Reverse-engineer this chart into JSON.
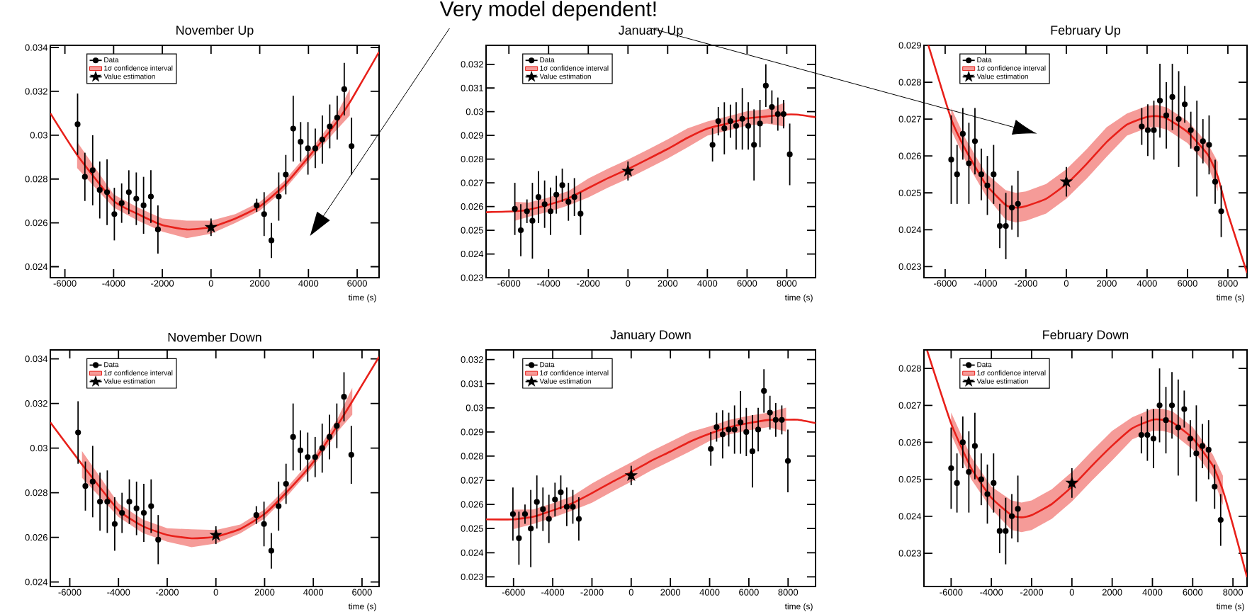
{
  "chart_data": [
    {
      "type": "scatter",
      "title": "November Up",
      "xlabel": "time (s)",
      "xlim": [
        -6600,
        6900
      ],
      "ylim": [
        0.0235,
        0.0341
      ],
      "xticks": [
        -6000,
        -4000,
        -2000,
        0,
        2000,
        4000,
        6000
      ],
      "yticks": [
        0.024,
        0.026,
        0.028,
        0.03,
        0.032,
        0.034
      ],
      "legend": "top left",
      "series": [
        {
          "name": "Data",
          "type": "scatter",
          "marker": "circle",
          "color": "#000000",
          "x": [
            -5480,
            -5180,
            -4860,
            -4570,
            -4270,
            -3970,
            -3670,
            -3375,
            -3070,
            -2770,
            -2470,
            -2180,
            1875,
            2180,
            2480,
            2780,
            3070,
            3375,
            3680,
            3980,
            4280,
            4570,
            4875,
            5180,
            5470,
            5770
          ],
          "values": [
            0.0305,
            0.0281,
            0.0284,
            0.0275,
            0.0274,
            0.0264,
            0.0269,
            0.0274,
            0.0271,
            0.0268,
            0.0272,
            0.0257,
            0.0268,
            0.0264,
            0.0252,
            0.0272,
            0.0282,
            0.0303,
            0.0297,
            0.0294,
            0.0294,
            0.0298,
            0.0304,
            0.0308,
            0.0321,
            0.0295
          ],
          "errors": [
            0.0014,
            0.0011,
            0.0016,
            0.0013,
            0.0015,
            0.0012,
            0.0009,
            0.001,
            0.0012,
            0.0013,
            0.0012,
            0.0011,
            0.0003,
            0.001,
            0.0008,
            0.0011,
            0.0009,
            0.0015,
            0.0009,
            0.0012,
            0.0009,
            0.0011,
            0.001,
            0.001,
            0.0012,
            0.0013
          ]
        },
        {
          "name": "1σ confidence interval",
          "type": "line",
          "color": "#e8201a",
          "x": [
            -6600,
            -5500,
            -4000,
            -3000,
            -2000,
            -1000,
            0,
            1000,
            2000,
            3000,
            4000,
            5000,
            5700,
            6900
          ],
          "values": [
            0.031,
            0.0291,
            0.027,
            0.0264,
            0.0259,
            0.0257,
            0.0258,
            0.0262,
            0.02675,
            0.0277,
            0.029,
            0.03035,
            0.0315,
            0.0338
          ],
          "lower": [
            null,
            0.0285,
            0.0267,
            0.0261,
            0.0256,
            0.0253,
            0.0255,
            0.026,
            0.02655,
            0.0275,
            0.0288,
            0.03005,
            0.0309,
            null
          ],
          "upper": [
            null,
            0.0297,
            0.0273,
            0.0267,
            0.0262,
            0.0261,
            0.0261,
            0.0264,
            0.02695,
            0.0279,
            0.0292,
            0.03065,
            0.0321,
            null
          ]
        },
        {
          "name": "Value estimation",
          "type": "scatter",
          "marker": "star",
          "color": "#000000",
          "x": [
            0
          ],
          "values": [
            0.0258
          ],
          "errors": [
            0.0004
          ]
        }
      ]
    },
    {
      "type": "scatter",
      "title": "January Up",
      "xlabel": "time (s)",
      "xlim": [
        -7150,
        9450
      ],
      "ylim": [
        0.023,
        0.0328
      ],
      "xticks": [
        -6000,
        -4000,
        -2000,
        0,
        2000,
        4000,
        6000,
        8000
      ],
      "yticks": [
        0.023,
        0.024,
        0.025,
        0.026,
        0.027,
        0.028,
        0.029,
        0.03,
        0.031,
        0.032
      ],
      "legend": "top left",
      "annotations": [
        "Very model dependent!"
      ],
      "series": [
        {
          "name": "Data",
          "type": "scatter",
          "marker": "circle",
          "color": "#000000",
          "x": [
            -5700,
            -5400,
            -5090,
            -4815,
            -4510,
            -4200,
            -3900,
            -3610,
            -3310,
            -3000,
            -2700,
            -2390,
            4260,
            4550,
            4855,
            5160,
            5450,
            5760,
            6060,
            6350,
            6650,
            6945,
            7250,
            7550,
            7840,
            8150
          ],
          "values": [
            0.0259,
            0.025,
            0.0258,
            0.0254,
            0.0264,
            0.0261,
            0.0258,
            0.0265,
            0.0269,
            0.0262,
            0.0264,
            0.0257,
            0.0286,
            0.0296,
            0.0293,
            0.0296,
            0.0294,
            0.0297,
            0.0294,
            0.0286,
            0.0295,
            0.0311,
            0.0302,
            0.0299,
            0.0299,
            0.0282
          ],
          "errors": [
            0.0011,
            0.0011,
            0.0005,
            0.0016,
            0.0011,
            0.001,
            0.001,
            0.0008,
            0.0007,
            0.0008,
            0.0008,
            0.0009,
            0.0007,
            0.0006,
            0.0011,
            0.0007,
            0.001,
            0.0013,
            0.001,
            0.0015,
            0.001,
            0.0009,
            0.0007,
            0.0007,
            0.0006,
            0.0013
          ]
        },
        {
          "name": "1σ confidence interval",
          "type": "line",
          "color": "#e8201a",
          "x": [
            -7150,
            -5700,
            -5000,
            -4000,
            -3000,
            -2000,
            -1000,
            0,
            1000,
            2000,
            3000,
            4000,
            5000,
            6000,
            7000,
            7900,
            8500,
            9450
          ],
          "values": [
            0.02576,
            0.0258,
            0.02587,
            0.02608,
            0.02635,
            0.02678,
            0.0272,
            0.02758,
            0.028,
            0.02843,
            0.0289,
            0.02929,
            0.0295,
            0.02972,
            0.0298,
            0.02988,
            0.02988,
            0.02977
          ],
          "lower": [
            null,
            0.0254,
            0.02557,
            0.02578,
            0.02605,
            0.02638,
            0.0268,
            0.02718,
            0.0276,
            0.02803,
            0.0285,
            0.02899,
            0.0292,
            0.02942,
            0.0295,
            0.02938,
            null,
            null
          ],
          "upper": [
            null,
            0.0262,
            0.02617,
            0.02638,
            0.02665,
            0.02718,
            0.0276,
            0.02798,
            0.0284,
            0.02883,
            0.0293,
            0.02959,
            0.0298,
            0.03002,
            0.0301,
            0.03038,
            null,
            null
          ]
        },
        {
          "name": "Value estimation",
          "type": "scatter",
          "marker": "star",
          "color": "#000000",
          "x": [
            0
          ],
          "values": [
            0.0275
          ],
          "errors": [
            0.0004
          ]
        }
      ]
    },
    {
      "type": "scatter",
      "title": "February Up",
      "xlabel": "time (s)",
      "xlim": [
        -7050,
        8950
      ],
      "ylim": [
        0.0227,
        0.029
      ],
      "xticks": [
        -6000,
        -4000,
        -2000,
        0,
        2000,
        4000,
        6000,
        8000
      ],
      "yticks": [
        0.023,
        0.024,
        0.025,
        0.026,
        0.027,
        0.028,
        0.029
      ],
      "legend": "top left",
      "series": [
        {
          "name": "Data",
          "type": "scatter",
          "marker": "circle",
          "color": "#000000",
          "x": [
            -5700,
            -5410,
            -5125,
            -4825,
            -4525,
            -4210,
            -3910,
            -3600,
            -3295,
            -2995,
            -2695,
            -2395,
            3735,
            4035,
            4335,
            4635,
            4950,
            5250,
            5565,
            5865,
            6165,
            6465,
            6765,
            7070,
            7370,
            7670
          ],
          "values": [
            0.0259,
            0.0255,
            0.0266,
            0.0258,
            0.0264,
            0.0255,
            0.0252,
            0.0255,
            0.0241,
            0.0241,
            0.0246,
            0.0247,
            0.0268,
            0.0267,
            0.0267,
            0.0275,
            0.0271,
            0.0276,
            0.027,
            0.0274,
            0.0267,
            0.0262,
            0.0264,
            0.0263,
            0.0253,
            0.0245
          ],
          "errors": [
            0.0012,
            0.0008,
            0.0007,
            0.0011,
            0.0009,
            0.0007,
            0.0008,
            0.0008,
            0.0006,
            0.0009,
            0.0006,
            0.0009,
            0.0005,
            0.0007,
            0.0008,
            0.001,
            0.0009,
            0.0009,
            0.0013,
            0.0005,
            0.0005,
            0.0013,
            0.0006,
            0.0008,
            0.0006,
            0.0007
          ]
        },
        {
          "name": "1σ confidence interval",
          "type": "line",
          "color": "#e8201a",
          "x": [
            -6830,
            -5700,
            -5000,
            -4000,
            -3000,
            -2500,
            -2000,
            -1000,
            0,
            1000,
            2000,
            3000,
            4000,
            4500,
            5000,
            6000,
            7000,
            7500,
            8000,
            8950
          ],
          "values": [
            0.029,
            0.027,
            0.02618,
            0.02524,
            0.02467,
            0.0246,
            0.02464,
            0.02484,
            0.02524,
            0.02578,
            0.02638,
            0.02685,
            0.02706,
            0.02708,
            0.02701,
            0.02665,
            0.02604,
            0.02544,
            0.02444,
            0.02283
          ],
          "lower": [
            null,
            0.0267,
            0.02588,
            0.02494,
            0.02427,
            0.0242,
            0.02424,
            0.02444,
            0.02484,
            0.02538,
            0.02598,
            0.02655,
            0.02676,
            0.02678,
            0.02671,
            0.02635,
            0.02574,
            0.02504,
            null,
            null
          ],
          "upper": [
            null,
            0.0273,
            0.02648,
            0.02554,
            0.02507,
            0.025,
            0.02504,
            0.02524,
            0.02564,
            0.02618,
            0.02678,
            0.02715,
            0.02736,
            0.02738,
            0.02731,
            0.02695,
            0.02634,
            0.02584,
            null,
            null
          ]
        },
        {
          "name": "Value estimation",
          "type": "scatter",
          "marker": "star",
          "color": "#000000",
          "x": [
            0
          ],
          "values": [
            0.0253
          ],
          "errors": [
            0.0004
          ]
        }
      ]
    },
    {
      "type": "scatter",
      "title": "November Down",
      "xlabel": "time (s)",
      "xlim": [
        -6800,
        6700
      ],
      "ylim": [
        0.0238,
        0.0344
      ],
      "xticks": [
        -6000,
        -4000,
        -2000,
        0,
        2000,
        4000,
        6000
      ],
      "yticks": [
        0.024,
        0.026,
        0.028,
        0.03,
        0.032,
        0.034
      ],
      "legend": "top left",
      "series": [
        {
          "name": "Data",
          "type": "scatter",
          "marker": "circle",
          "color": "#000000",
          "x": [
            -5660,
            -5360,
            -5060,
            -4760,
            -4460,
            -4155,
            -3855,
            -3555,
            -3260,
            -2960,
            -2660,
            -2370,
            1660,
            1975,
            2275,
            2575,
            2880,
            3170,
            3470,
            3770,
            4075,
            4365,
            4665,
            4965,
            5260,
            5560
          ],
          "values": [
            0.0307,
            0.0283,
            0.0285,
            0.0276,
            0.0276,
            0.0266,
            0.0271,
            0.0276,
            0.0273,
            0.0271,
            0.0274,
            0.0259,
            0.027,
            0.0266,
            0.0254,
            0.0274,
            0.0284,
            0.0305,
            0.0299,
            0.0296,
            0.0296,
            0.03,
            0.0305,
            0.031,
            0.0323,
            0.0297
          ],
          "errors": [
            0.0014,
            0.0011,
            0.0016,
            0.0013,
            0.0014,
            0.0012,
            0.0009,
            0.001,
            0.0012,
            0.0013,
            0.0012,
            0.0011,
            0.0004,
            0.001,
            0.0008,
            0.0011,
            0.0009,
            0.0015,
            0.0009,
            0.0011,
            0.0009,
            0.0011,
            0.001,
            0.001,
            0.0011,
            0.0013
          ]
        },
        {
          "name": "1σ confidence interval",
          "type": "line",
          "color": "#e8201a",
          "x": [
            -6800,
            -5500,
            -4000,
            -3000,
            -2000,
            -1000,
            0,
            1000,
            2000,
            3000,
            4000,
            5000,
            5600,
            6700
          ],
          "values": [
            0.03115,
            0.02927,
            0.02722,
            0.0265,
            0.02611,
            0.02596,
            0.02603,
            0.02638,
            0.02705,
            0.02814,
            0.02938,
            0.03104,
            0.0321,
            0.03409
          ],
          "lower": [
            null,
            0.02867,
            0.02692,
            0.0262,
            0.02581,
            0.02556,
            0.02573,
            0.02618,
            0.02685,
            0.02794,
            0.02918,
            0.03074,
            0.0315,
            null
          ],
          "upper": [
            null,
            0.02987,
            0.02752,
            0.0268,
            0.02641,
            0.02636,
            0.02633,
            0.02658,
            0.02725,
            0.02834,
            0.02958,
            0.03134,
            0.0327,
            null
          ]
        },
        {
          "name": "Value estimation",
          "type": "scatter",
          "marker": "star",
          "color": "#000000",
          "x": [
            0
          ],
          "values": [
            0.0261
          ],
          "errors": [
            0.0004
          ]
        }
      ]
    },
    {
      "type": "scatter",
      "title": "January Down",
      "xlabel": "time (s)",
      "xlim": [
        -7400,
        9400
      ],
      "ylim": [
        0.0226,
        0.0324
      ],
      "xticks": [
        -6000,
        -4000,
        -2000,
        0,
        2000,
        4000,
        6000,
        8000
      ],
      "yticks": [
        0.023,
        0.024,
        0.025,
        0.026,
        0.027,
        0.028,
        0.029,
        0.03,
        0.031,
        0.032
      ],
      "legend": "top left",
      "series": [
        {
          "name": "Data",
          "type": "scatter",
          "marker": "circle",
          "color": "#000000",
          "x": [
            -6030,
            -5725,
            -5415,
            -5120,
            -4810,
            -4500,
            -4195,
            -3885,
            -3590,
            -3285,
            -2975,
            -2670,
            4060,
            4355,
            4665,
            4975,
            5270,
            5575,
            5870,
            6180,
            6475,
            6770,
            7075,
            7370,
            7680,
            7990
          ],
          "values": [
            0.0256,
            0.0246,
            0.0256,
            0.025,
            0.0261,
            0.0258,
            0.0254,
            0.0262,
            0.0265,
            0.0259,
            0.0259,
            0.0254,
            0.0283,
            0.0292,
            0.0289,
            0.0291,
            0.0291,
            0.0294,
            0.029,
            0.0282,
            0.0291,
            0.0307,
            0.0298,
            0.0295,
            0.0295,
            0.0278
          ],
          "errors": [
            0.0011,
            0.0011,
            0.0004,
            0.0016,
            0.0011,
            0.0009,
            0.001,
            0.0007,
            0.0007,
            0.0008,
            0.0007,
            0.0009,
            0.0007,
            0.0006,
            0.001,
            0.0007,
            0.001,
            0.0013,
            0.001,
            0.0015,
            0.0009,
            0.0009,
            0.0007,
            0.0007,
            0.0006,
            0.0013
          ]
        },
        {
          "name": "1σ confidence interval",
          "type": "line",
          "color": "#e8201a",
          "x": [
            -7400,
            -6000,
            -5000,
            -4000,
            -3000,
            -2000,
            -1000,
            0,
            1000,
            2000,
            3000,
            4000,
            5000,
            6000,
            7000,
            7900,
            8500,
            9400
          ],
          "values": [
            0.02538,
            0.02538,
            0.02549,
            0.02575,
            0.02605,
            0.02647,
            0.02692,
            0.02734,
            0.0278,
            0.02819,
            0.0286,
            0.02893,
            0.0292,
            0.02937,
            0.0295,
            0.02951,
            0.02951,
            0.02937
          ],
          "lower": [
            null,
            0.02498,
            0.02519,
            0.02545,
            0.02575,
            0.02607,
            0.02652,
            0.02694,
            0.0274,
            0.02779,
            0.0282,
            0.02863,
            0.0289,
            0.02907,
            0.0292,
            0.02901,
            null,
            null
          ],
          "upper": [
            null,
            0.02578,
            0.02579,
            0.02605,
            0.02635,
            0.02687,
            0.02732,
            0.02774,
            0.0282,
            0.02859,
            0.029,
            0.02923,
            0.0295,
            0.02967,
            0.0298,
            0.03001,
            null,
            null
          ]
        },
        {
          "name": "Value estimation",
          "type": "scatter",
          "marker": "star",
          "color": "#000000",
          "x": [
            0
          ],
          "values": [
            0.0272
          ],
          "errors": [
            0.0004
          ]
        }
      ]
    },
    {
      "type": "scatter",
      "title": "February Down",
      "xlabel": "time (s)",
      "xlim": [
        -7350,
        8700
      ],
      "ylim": [
        0.0221,
        0.0285
      ],
      "xticks": [
        -6000,
        -4000,
        -2000,
        0,
        2000,
        4000,
        6000,
        8000
      ],
      "yticks": [
        0.023,
        0.024,
        0.025,
        0.026,
        0.027,
        0.028
      ],
      "legend": "top left",
      "series": [
        {
          "name": "Data",
          "type": "scatter",
          "marker": "circle",
          "color": "#000000",
          "x": [
            -6000,
            -5710,
            -5420,
            -5120,
            -4820,
            -4505,
            -4200,
            -3890,
            -3590,
            -3290,
            -2985,
            -2685,
            3450,
            3750,
            4050,
            4355,
            4670,
            4970,
            5280,
            5580,
            5880,
            6180,
            6480,
            6790,
            7090,
            7390
          ],
          "values": [
            0.0253,
            0.0249,
            0.026,
            0.0252,
            0.0259,
            0.025,
            0.0246,
            0.0249,
            0.0236,
            0.0236,
            0.024,
            0.0242,
            0.0262,
            0.0262,
            0.0261,
            0.027,
            0.0266,
            0.027,
            0.0264,
            0.0269,
            0.0261,
            0.0257,
            0.0259,
            0.0258,
            0.0248,
            0.0239
          ],
          "errors": [
            0.0011,
            0.0008,
            0.0007,
            0.0011,
            0.0009,
            0.0007,
            0.0008,
            0.0008,
            0.0006,
            0.0009,
            0.0006,
            0.0009,
            0.0005,
            0.0007,
            0.0008,
            0.001,
            0.0009,
            0.0009,
            0.0013,
            0.0005,
            0.0005,
            0.0013,
            0.0006,
            0.0008,
            0.0006,
            0.0007
          ]
        },
        {
          "name": "1σ confidence interval",
          "type": "line",
          "color": "#e8201a",
          "x": [
            -7190,
            -6000,
            -5000,
            -4000,
            -3000,
            -2500,
            -2000,
            -1000,
            0,
            1000,
            2000,
            3000,
            4000,
            4500,
            5000,
            6000,
            7000,
            7500,
            8000,
            8700
          ],
          "values": [
            0.02848,
            0.02651,
            0.0253,
            0.0245,
            0.02403,
            0.02397,
            0.02403,
            0.02433,
            0.0248,
            0.02537,
            0.02591,
            0.02638,
            0.02661,
            0.02661,
            0.02654,
            0.02611,
            0.02537,
            0.0247,
            0.02376,
            0.02235
          ],
          "lower": [
            null,
            0.02621,
            0.025,
            0.0242,
            0.02363,
            0.02357,
            0.02363,
            0.02393,
            0.0244,
            0.02497,
            0.02551,
            0.02608,
            0.02631,
            0.02631,
            0.02624,
            0.02581,
            0.02507,
            0.0243,
            null,
            null
          ],
          "upper": [
            null,
            0.02681,
            0.0256,
            0.0248,
            0.02443,
            0.02437,
            0.02443,
            0.02473,
            0.0252,
            0.02577,
            0.02631,
            0.02668,
            0.02691,
            0.02691,
            0.02684,
            0.02641,
            0.02567,
            0.0251,
            null,
            null
          ]
        },
        {
          "name": "Value estimation",
          "type": "scatter",
          "marker": "star",
          "color": "#000000",
          "x": [
            0
          ],
          "values": [
            0.0249
          ],
          "errors": [
            0.0004
          ]
        }
      ]
    }
  ]
}
